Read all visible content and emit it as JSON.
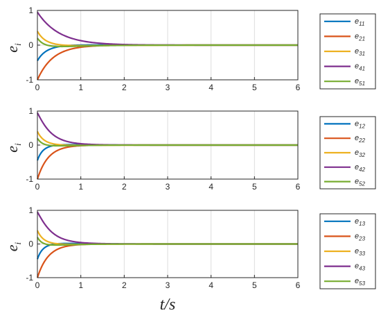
{
  "colors": {
    "series": [
      "#0072BD",
      "#D95319",
      "#EDB120",
      "#7E2F8E",
      "#77AC30"
    ],
    "axis": "#262626",
    "grid": "#dcdcdc"
  },
  "xlabel": "t/s",
  "chart_data": [
    {
      "type": "line",
      "ylabel": {
        "base": "e",
        "sub": "i"
      },
      "xlim": [
        0,
        6
      ],
      "ylim": [
        -1,
        1
      ],
      "xticks": [
        "0",
        "1",
        "2",
        "3",
        "4",
        "5",
        "6"
      ],
      "yticks": [
        "-1",
        "0",
        "1"
      ],
      "grid": true,
      "legend_position": "right",
      "series": [
        {
          "name": "e11",
          "label_base": "e",
          "label_sub": "11",
          "start": -0.45,
          "decay": 3.2,
          "overshoot": 0.12,
          "osc": 3.5
        },
        {
          "name": "e21",
          "label_base": "e",
          "label_sub": "21",
          "start": -1.0,
          "decay": 2.8,
          "overshoot": 0.0,
          "osc": 0
        },
        {
          "name": "e31",
          "label_base": "e",
          "label_sub": "31",
          "start": 0.4,
          "decay": 3.0,
          "overshoot": -0.18,
          "osc": 3.0
        },
        {
          "name": "e41",
          "label_base": "e",
          "label_sub": "41",
          "start": 0.95,
          "decay": 2.0,
          "overshoot": 0.0,
          "osc": 0
        },
        {
          "name": "e51",
          "label_base": "e",
          "label_sub": "51",
          "start": 0.2,
          "decay": 3.0,
          "overshoot": -0.2,
          "osc": 3.2
        }
      ]
    },
    {
      "type": "line",
      "ylabel": {
        "base": "e",
        "sub": "i"
      },
      "xlim": [
        0,
        6
      ],
      "ylim": [
        -1,
        1
      ],
      "xticks": [
        "0",
        "1",
        "2",
        "3",
        "4",
        "5",
        "6"
      ],
      "yticks": [
        "-1",
        "0",
        "1"
      ],
      "grid": true,
      "legend_position": "right",
      "series": [
        {
          "name": "e12",
          "label_base": "e",
          "label_sub": "12",
          "start": -0.45,
          "decay": 4.5,
          "overshoot": 0.18,
          "osc": 4.0
        },
        {
          "name": "e22",
          "label_base": "e",
          "label_sub": "22",
          "start": -1.0,
          "decay": 4.0,
          "overshoot": 0.0,
          "osc": 0
        },
        {
          "name": "e32",
          "label_base": "e",
          "label_sub": "32",
          "start": 0.4,
          "decay": 4.2,
          "overshoot": -0.12,
          "osc": 3.8
        },
        {
          "name": "e42",
          "label_base": "e",
          "label_sub": "42",
          "start": 0.95,
          "decay": 3.8,
          "overshoot": 0.15,
          "osc": 2.0
        },
        {
          "name": "e52",
          "label_base": "e",
          "label_sub": "52",
          "start": 0.2,
          "decay": 4.2,
          "overshoot": -0.15,
          "osc": 3.6
        }
      ]
    },
    {
      "type": "line",
      "ylabel": {
        "base": "e",
        "sub": "i"
      },
      "xlim": [
        0,
        6
      ],
      "ylim": [
        -1,
        1
      ],
      "xticks": [
        "0",
        "1",
        "2",
        "3",
        "4",
        "5",
        "6"
      ],
      "yticks": [
        "-1",
        "0",
        "1"
      ],
      "grid": true,
      "legend_position": "right",
      "series": [
        {
          "name": "e13",
          "label_base": "e",
          "label_sub": "13",
          "start": -0.45,
          "decay": 4.5,
          "overshoot": 0.2,
          "osc": 4.0
        },
        {
          "name": "e23",
          "label_base": "e",
          "label_sub": "23",
          "start": -1.0,
          "decay": 4.0,
          "overshoot": 0.0,
          "osc": 0
        },
        {
          "name": "e33",
          "label_base": "e",
          "label_sub": "33",
          "start": 0.4,
          "decay": 4.2,
          "overshoot": -0.15,
          "osc": 3.8
        },
        {
          "name": "e43",
          "label_base": "e",
          "label_sub": "43",
          "start": 0.95,
          "decay": 3.8,
          "overshoot": 0.18,
          "osc": 2.0
        },
        {
          "name": "e53",
          "label_base": "e",
          "label_sub": "53",
          "start": 0.2,
          "decay": 4.2,
          "overshoot": -0.18,
          "osc": 3.6
        }
      ]
    }
  ]
}
